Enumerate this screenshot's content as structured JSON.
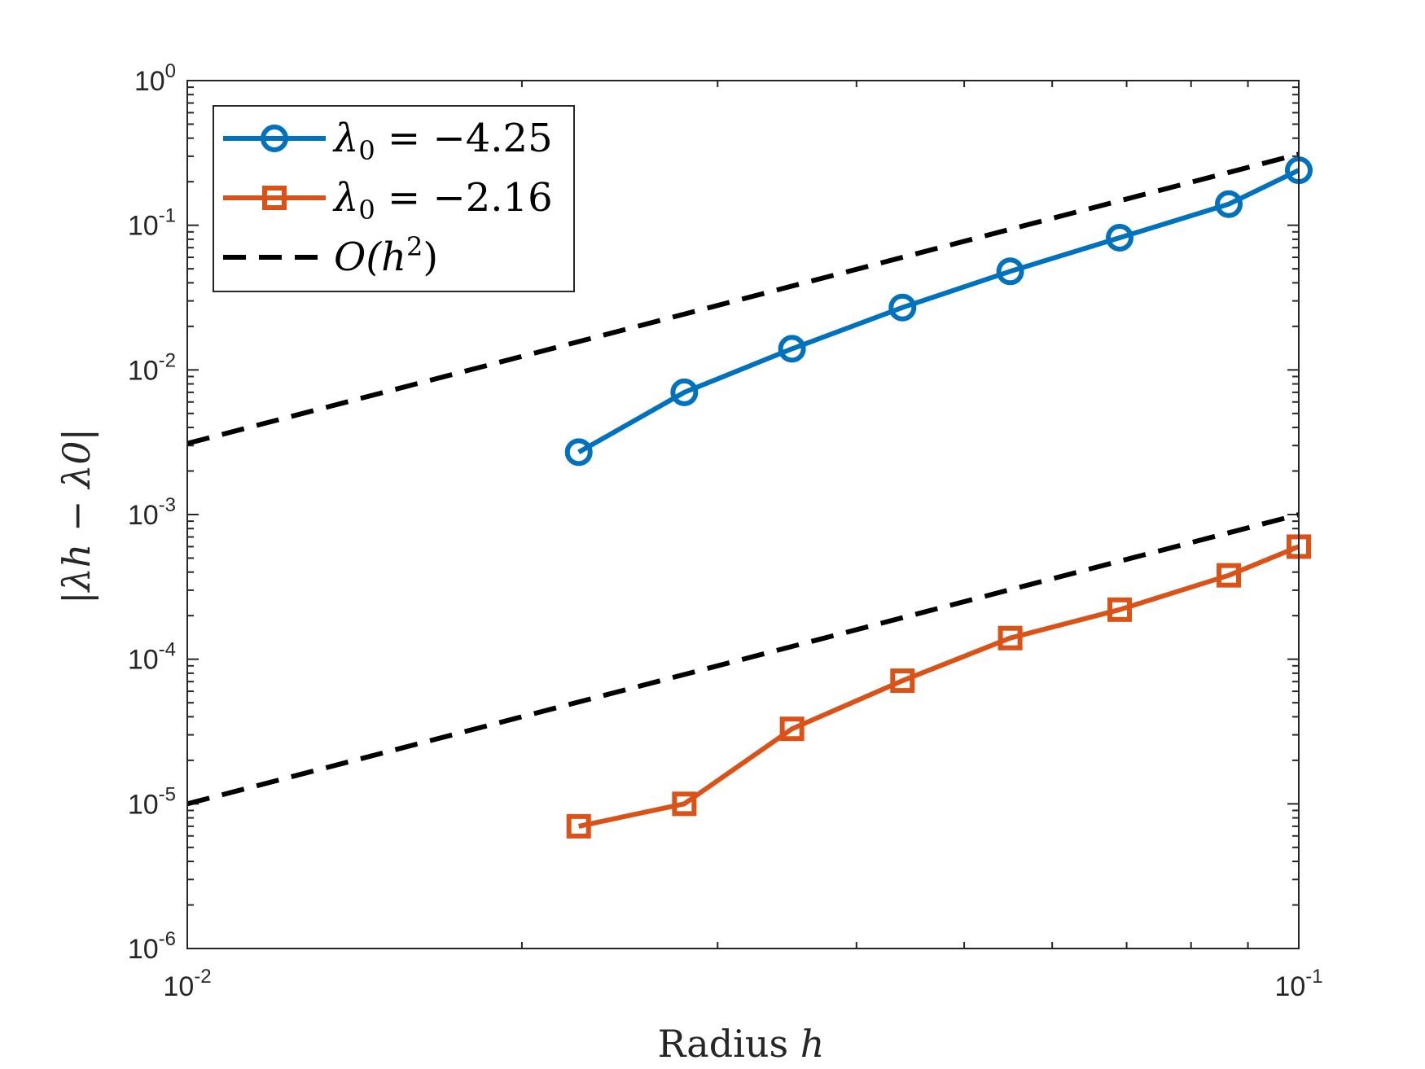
{
  "chart_data": {
    "type": "line",
    "xscale": "log",
    "yscale": "log",
    "xlim": [
      0.01,
      0.1
    ],
    "ylim": [
      1e-06,
      1
    ],
    "xlabel_text": "Radius ",
    "xlabel_var": "h",
    "ylabel": "|λh − λ0|",
    "x_ticks": [
      {
        "value": 0.01,
        "base": "10",
        "exp": "-2"
      },
      {
        "value": 0.1,
        "base": "10",
        "exp": "-1"
      }
    ],
    "y_ticks": [
      {
        "value": 1,
        "base": "10",
        "exp": "0"
      },
      {
        "value": 0.1,
        "base": "10",
        "exp": "-1"
      },
      {
        "value": 0.01,
        "base": "10",
        "exp": "-2"
      },
      {
        "value": 0.001,
        "base": "10",
        "exp": "-3"
      },
      {
        "value": 0.0001,
        "base": "10",
        "exp": "-4"
      },
      {
        "value": 1e-05,
        "base": "10",
        "exp": "-5"
      },
      {
        "value": 1e-06,
        "base": "10",
        "exp": "-6"
      }
    ],
    "legend_position": "top-left",
    "series": [
      {
        "name": "λ0 = −4.25",
        "legend_sym": "λ",
        "legend_sub": "0",
        "legend_rest": " = −4.25",
        "color": "#0072BD",
        "marker": "circle",
        "x": [
          0.0225,
          0.028,
          0.035,
          0.044,
          0.055,
          0.069,
          0.0865,
          0.1
        ],
        "y": [
          0.0027,
          0.007,
          0.014,
          0.027,
          0.048,
          0.082,
          0.14,
          0.24
        ]
      },
      {
        "name": "λ0 = −2.16",
        "legend_sym": "λ",
        "legend_sub": "0",
        "legend_rest": " = −2.16",
        "color": "#D95319",
        "marker": "square",
        "x": [
          0.0225,
          0.028,
          0.035,
          0.044,
          0.055,
          0.069,
          0.0865,
          0.1
        ],
        "y": [
          7e-06,
          1e-05,
          3.3e-05,
          7.1e-05,
          0.00014,
          0.00022,
          0.00038,
          0.0006
        ]
      }
    ],
    "reference_lines": [
      {
        "name": "O(h^2)",
        "legend_text": "O(h",
        "legend_exp": "2",
        "legend_close": ")",
        "color": "#000000",
        "style": "dashed",
        "x": [
          0.01,
          0.1
        ],
        "y": [
          0.0031,
          0.31
        ]
      },
      {
        "name": "O(h^2) lower",
        "color": "#000000",
        "style": "dashed",
        "x": [
          0.01,
          0.1
        ],
        "y": [
          1e-05,
          0.001
        ]
      }
    ]
  }
}
